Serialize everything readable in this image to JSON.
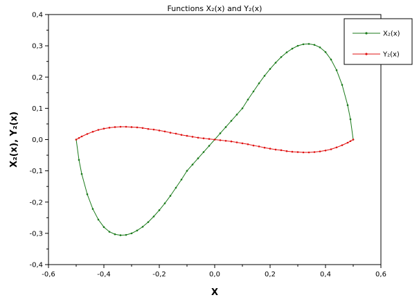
{
  "chart_data": {
    "type": "line",
    "title": "Functions X₂(x) and Y₂(x)",
    "xlabel": "X",
    "ylabel": "X₂(x), Y₂(x)",
    "xlim": [
      -0.6,
      0.6
    ],
    "ylim": [
      -0.4,
      0.4
    ],
    "x_ticks": [
      "-0,6",
      "-0,4",
      "-0,2",
      "0,0",
      "0,2",
      "0,4",
      "0,6"
    ],
    "y_ticks": [
      "-0,4",
      "-0,3",
      "-0,2",
      "-0,1",
      "0,0",
      "0,1",
      "0,2",
      "0,3",
      "0,4"
    ],
    "grid": false,
    "legend_position": "top-right",
    "series": [
      {
        "name": "X₂(x)",
        "color": "#1a7a1a",
        "x": [
          -0.5,
          -0.49,
          -0.48,
          -0.46,
          -0.44,
          -0.42,
          -0.4,
          -0.38,
          -0.36,
          -0.34,
          -0.32,
          -0.3,
          -0.28,
          -0.26,
          -0.24,
          -0.22,
          -0.2,
          -0.18,
          -0.16,
          -0.14,
          -0.12,
          -0.1,
          -0.08,
          -0.06,
          -0.04,
          -0.02,
          0.0,
          0.02,
          0.04,
          0.06,
          0.08,
          0.1,
          0.12,
          0.14,
          0.16,
          0.18,
          0.2,
          0.22,
          0.24,
          0.26,
          0.28,
          0.3,
          0.32,
          0.34,
          0.36,
          0.38,
          0.4,
          0.42,
          0.44,
          0.46,
          0.48,
          0.49,
          0.5
        ],
        "y": [
          0.0,
          -0.065,
          -0.11,
          -0.175,
          -0.222,
          -0.256,
          -0.28,
          -0.295,
          -0.303,
          -0.306,
          -0.305,
          -0.3,
          -0.291,
          -0.279,
          -0.264,
          -0.246,
          -0.226,
          -0.204,
          -0.18,
          -0.154,
          -0.128,
          -0.1,
          -0.08,
          -0.06,
          -0.04,
          -0.02,
          0.0,
          0.02,
          0.04,
          0.06,
          0.08,
          0.1,
          0.128,
          0.154,
          0.18,
          0.204,
          0.226,
          0.246,
          0.264,
          0.279,
          0.291,
          0.3,
          0.305,
          0.306,
          0.303,
          0.295,
          0.28,
          0.256,
          0.222,
          0.175,
          0.11,
          0.065,
          0.0
        ]
      },
      {
        "name": "Y₂(x)",
        "color": "#e01010",
        "x": [
          -0.5,
          -0.49,
          -0.48,
          -0.46,
          -0.44,
          -0.42,
          -0.4,
          -0.38,
          -0.36,
          -0.34,
          -0.32,
          -0.3,
          -0.28,
          -0.26,
          -0.24,
          -0.22,
          -0.2,
          -0.18,
          -0.16,
          -0.14,
          -0.12,
          -0.1,
          -0.08,
          -0.06,
          -0.04,
          -0.02,
          0.0,
          0.02,
          0.04,
          0.06,
          0.08,
          0.1,
          0.12,
          0.14,
          0.16,
          0.18,
          0.2,
          0.22,
          0.24,
          0.26,
          0.28,
          0.3,
          0.32,
          0.34,
          0.36,
          0.38,
          0.4,
          0.42,
          0.44,
          0.46,
          0.48,
          0.49,
          0.5
        ],
        "y": [
          0.0,
          0.005,
          0.01,
          0.018,
          0.025,
          0.031,
          0.035,
          0.038,
          0.04,
          0.041,
          0.041,
          0.04,
          0.039,
          0.037,
          0.034,
          0.032,
          0.029,
          0.026,
          0.022,
          0.019,
          0.015,
          0.012,
          0.009,
          0.006,
          0.004,
          0.002,
          0.0,
          -0.002,
          -0.004,
          -0.006,
          -0.009,
          -0.012,
          -0.015,
          -0.019,
          -0.022,
          -0.026,
          -0.029,
          -0.032,
          -0.034,
          -0.037,
          -0.039,
          -0.04,
          -0.041,
          -0.041,
          -0.04,
          -0.038,
          -0.035,
          -0.031,
          -0.025,
          -0.018,
          -0.01,
          -0.005,
          0.0
        ]
      }
    ]
  }
}
